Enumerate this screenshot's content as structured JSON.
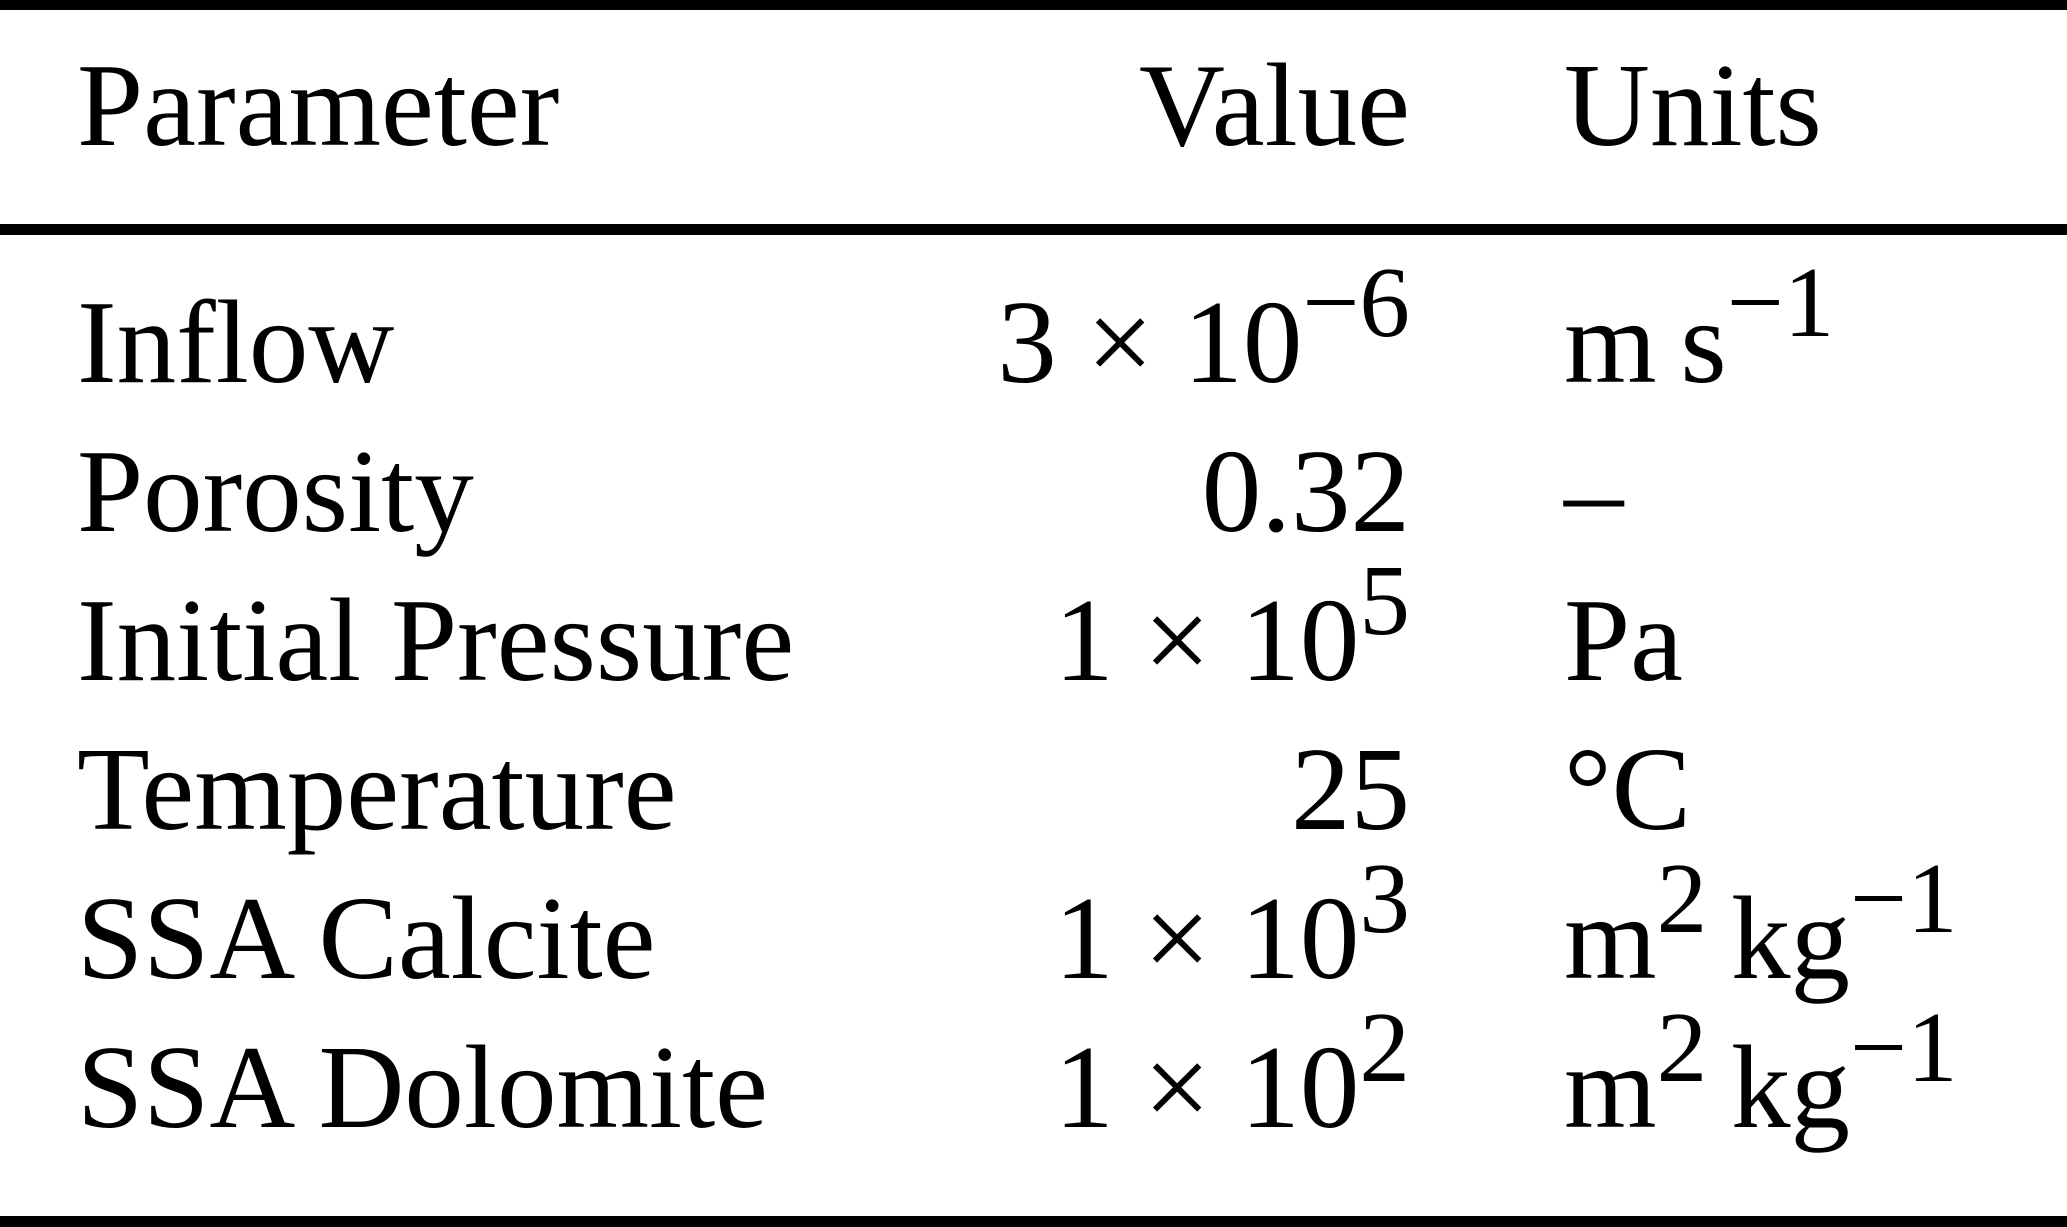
{
  "table": {
    "headers": [
      {
        "label": "Parameter",
        "align": "left"
      },
      {
        "label": "Value",
        "align": "right"
      },
      {
        "label": "Units",
        "align": "left"
      }
    ],
    "rows": [
      {
        "parameter": "Inflow",
        "value": [
          {
            "t": "3 × 10"
          },
          {
            "t": "−6",
            "sup": true
          }
        ],
        "units": [
          {
            "t": "m s"
          },
          {
            "t": "−1",
            "sup": true
          }
        ]
      },
      {
        "parameter": "Porosity",
        "value": [
          {
            "t": "0.32"
          }
        ],
        "units": [
          {
            "t": "–"
          }
        ]
      },
      {
        "parameter": "Initial Pressure",
        "value": [
          {
            "t": "1 × 10"
          },
          {
            "t": "5",
            "sup": true
          }
        ],
        "units": [
          {
            "t": "Pa"
          }
        ]
      },
      {
        "parameter": "Temperature",
        "value": [
          {
            "t": "25"
          }
        ],
        "units": [
          {
            "t": "°C"
          }
        ]
      },
      {
        "parameter": "SSA Calcite",
        "value": [
          {
            "t": "1 × 10"
          },
          {
            "t": "3",
            "sup": true
          }
        ],
        "units": [
          {
            "t": "m"
          },
          {
            "t": "2",
            "sup": true
          },
          {
            "t": " kg"
          },
          {
            "t": "−1",
            "sup": true
          }
        ]
      },
      {
        "parameter": "SSA Dolomite",
        "value": [
          {
            "t": "1 × 10"
          },
          {
            "t": "2",
            "sup": true
          }
        ],
        "units": [
          {
            "t": "m"
          },
          {
            "t": "2",
            "sup": true
          },
          {
            "t": " kg"
          },
          {
            "t": "−1",
            "sup": true
          }
        ]
      }
    ]
  },
  "colors": {
    "text": "#000000",
    "background": "#ffffff",
    "rule": "#000000"
  }
}
